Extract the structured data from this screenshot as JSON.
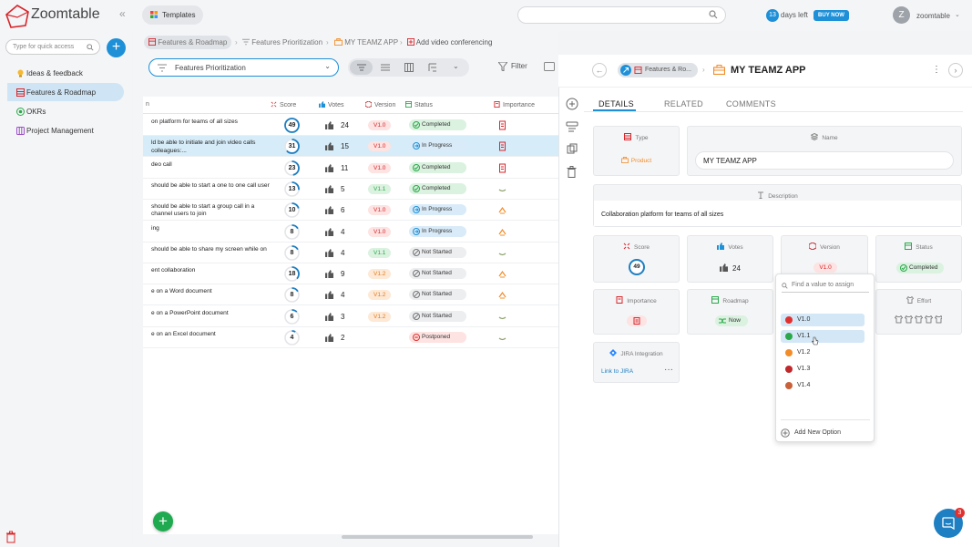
{
  "app": {
    "name": "Zoomtable"
  },
  "topbar": {
    "templates_label": "Templates",
    "trial_days": "13",
    "trial_text": "days left",
    "buy_label": "BUY NOW",
    "avatar_initial": "Z",
    "user_name": "zoomtable"
  },
  "sidebar": {
    "quick_placeholder": "Type for quick access",
    "items": [
      {
        "label": "Ideas & feedback",
        "icon": "bulb-icon"
      },
      {
        "label": "Features & Roadmap",
        "icon": "table-icon"
      },
      {
        "label": "OKRs",
        "icon": "target-icon"
      },
      {
        "label": "Project Management",
        "icon": "board-icon"
      }
    ]
  },
  "breadcrumb": {
    "items": [
      "Features & Roadmap",
      "Features Prioritization",
      "MY TEAMZ APP",
      "Add video conferencing"
    ]
  },
  "view": {
    "selected": "Features Prioritization",
    "filter_label": "Filter"
  },
  "table": {
    "headers": [
      "n",
      "Score",
      "Votes",
      "Version",
      "Status",
      "Importance"
    ],
    "rows": [
      {
        "name": "on platform for teams of all sizes",
        "score": "49",
        "votes": "24",
        "version": "V1.0",
        "status": "Completed"
      },
      {
        "name": "ld be able to initiate and join video calls colleagues:...",
        "score": "31",
        "votes": "15",
        "version": "V1.0",
        "status": "In Progress"
      },
      {
        "name": "deo call",
        "score": "23",
        "votes": "11",
        "version": "V1.0",
        "status": "Completed"
      },
      {
        "name": "should be able to start a one to one call user",
        "score": "13",
        "votes": "5",
        "version": "V1.1",
        "status": "Completed"
      },
      {
        "name": "should be able to start a group call in a channel users to join",
        "score": "10",
        "votes": "6",
        "version": "V1.0",
        "status": "In Progress"
      },
      {
        "name": "ing",
        "score": "8",
        "votes": "4",
        "version": "V1.0",
        "status": "In Progress"
      },
      {
        "name": "should be able to share my screen while on",
        "score": "8",
        "votes": "4",
        "version": "V1.1",
        "status": "Not Started"
      },
      {
        "name": "ent collaboration",
        "score": "18",
        "votes": "9",
        "version": "V1.2",
        "status": "Not Started"
      },
      {
        "name": "e on a Word document",
        "score": "8",
        "votes": "4",
        "version": "V1.2",
        "status": "Not Started"
      },
      {
        "name": "e on a PowerPoint document",
        "score": "6",
        "votes": "3",
        "version": "V1.2",
        "status": "Not Started"
      },
      {
        "name": "e on an Excel document",
        "score": "4",
        "votes": "2",
        "version": "",
        "status": "Postponed"
      }
    ]
  },
  "panel": {
    "chip_label": "Features & Ro...",
    "title": "MY TEAMZ APP",
    "tabs": [
      "DETAILS",
      "RELATED",
      "COMMENTS"
    ],
    "type_label": "Type",
    "type_value": "Product",
    "name_label": "Name",
    "name_value": "MY TEAMZ APP",
    "description_label": "Description",
    "description_value": "Collaboration platform for teams of all sizes",
    "score_label": "Score",
    "score_value": "49",
    "votes_label": "Votes",
    "votes_value": "24",
    "version_label": "Version",
    "version_value": "V1.0",
    "status_label": "Status",
    "status_value": "Completed",
    "importance_label": "Importance",
    "roadmap_label": "Roadmap",
    "roadmap_value": "Now",
    "effort_label": "Effort",
    "jira_label": "JIRA Integration",
    "jira_link": "Link to JIRA"
  },
  "dropdown": {
    "placeholder": "Find a value to assign",
    "options": [
      {
        "label": "V1.0",
        "color": "#e0312f"
      },
      {
        "label": "V1.1",
        "color": "#2aa84a"
      },
      {
        "label": "V1.2",
        "color": "#f28c28"
      },
      {
        "label": "V1.3",
        "color": "#c0282b"
      },
      {
        "label": "V1.4",
        "color": "#c9613a"
      }
    ],
    "add_label": "Add New Option"
  },
  "chat": {
    "badge": "3"
  },
  "colors": {
    "accent": "#1e90d8",
    "completed": "#2aa84a",
    "in_progress": "#1e90d8",
    "postponed": "#e0312f"
  }
}
